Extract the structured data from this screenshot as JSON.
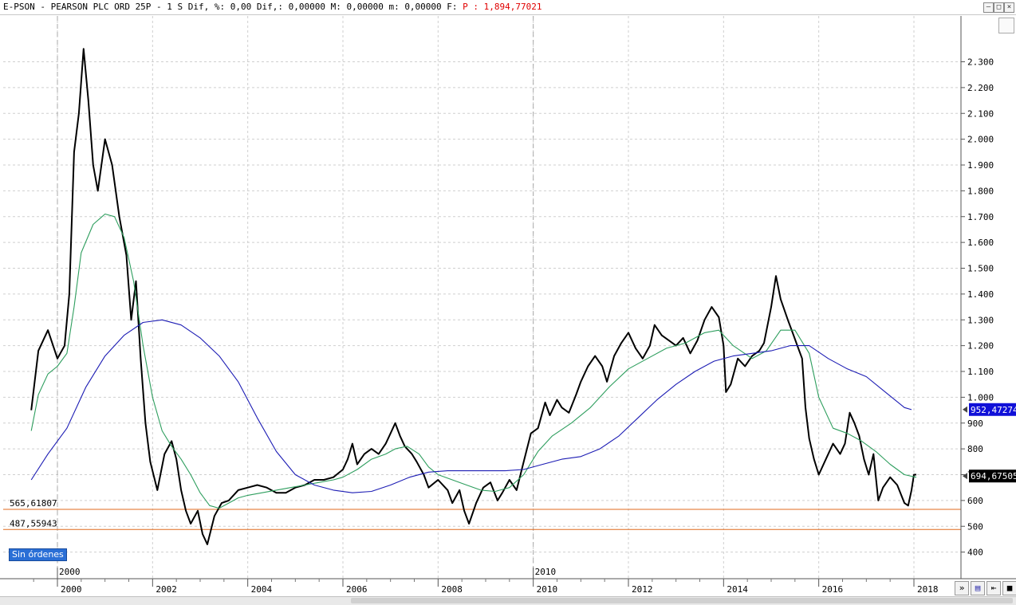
{
  "window": {
    "title": "E-PSON - PEARSON PLC ORD 25P -  1 S Dif, %: 0,00 Dif,: 0,00000 M: 0,00000 m: 0,00000 F:",
    "price_label": "P : 1,894,77021",
    "buttons": {
      "minimize": "–",
      "restore": "□",
      "close": "×"
    }
  },
  "badge": "Sin órdenes",
  "tools": {
    "nav": "»",
    "save": "▤",
    "pin": "⇤",
    "color": "■"
  },
  "chart_data": {
    "type": "line",
    "title": "E-PSON - PEARSON PLC ORD 25P",
    "x_range": [
      1999.45,
      2018.2
    ],
    "ylim": [
      340,
      2420
    ],
    "y_ticks": [
      400,
      500,
      600,
      700,
      800,
      900,
      1000,
      1100,
      1200,
      1300,
      1400,
      1500,
      1600,
      1700,
      1800,
      1900,
      2000,
      2100,
      2200,
      2300
    ],
    "y_tick_labels": [
      "400",
      "500",
      "600",
      "700",
      "800",
      "900",
      "1.000",
      "1.100",
      "1.200",
      "1.300",
      "1.400",
      "1.500",
      "1.600",
      "1.700",
      "1.800",
      "1.900",
      "2.000",
      "2.100",
      "2.200",
      "2.300"
    ],
    "x_ticks": [
      2000,
      2002,
      2004,
      2006,
      2008,
      2010,
      2012,
      2014,
      2016,
      2018
    ],
    "x_tick_labels": [
      "2000",
      "2002",
      "2004",
      "2006",
      "2008",
      "2010",
      "2012",
      "2014",
      "2016",
      "2018"
    ],
    "upper_axis_labels": [
      {
        "x": 2000,
        "label": "2000"
      },
      {
        "x": 2010,
        "label": "2010"
      }
    ],
    "grid": true,
    "series": [
      {
        "name": "price",
        "color": "#000000",
        "points": [
          [
            1999.45,
            950
          ],
          [
            1999.6,
            1180
          ],
          [
            1999.8,
            1260
          ],
          [
            2000.0,
            1150
          ],
          [
            2000.15,
            1200
          ],
          [
            2000.25,
            1400
          ],
          [
            2000.35,
            1950
          ],
          [
            2000.45,
            2100
          ],
          [
            2000.55,
            2350
          ],
          [
            2000.65,
            2150
          ],
          [
            2000.75,
            1900
          ],
          [
            2000.85,
            1800
          ],
          [
            2001.0,
            2000
          ],
          [
            2001.15,
            1900
          ],
          [
            2001.3,
            1700
          ],
          [
            2001.45,
            1550
          ],
          [
            2001.55,
            1300
          ],
          [
            2001.65,
            1450
          ],
          [
            2001.75,
            1150
          ],
          [
            2001.85,
            900
          ],
          [
            2001.95,
            750
          ],
          [
            2002.1,
            640
          ],
          [
            2002.25,
            780
          ],
          [
            2002.4,
            830
          ],
          [
            2002.5,
            760
          ],
          [
            2002.6,
            640
          ],
          [
            2002.7,
            560
          ],
          [
            2002.8,
            510
          ],
          [
            2002.95,
            560
          ],
          [
            2003.05,
            470
          ],
          [
            2003.15,
            430
          ],
          [
            2003.3,
            540
          ],
          [
            2003.45,
            590
          ],
          [
            2003.6,
            600
          ],
          [
            2003.8,
            640
          ],
          [
            2004.0,
            650
          ],
          [
            2004.2,
            660
          ],
          [
            2004.4,
            650
          ],
          [
            2004.6,
            630
          ],
          [
            2004.8,
            630
          ],
          [
            2005.0,
            650
          ],
          [
            2005.2,
            660
          ],
          [
            2005.4,
            680
          ],
          [
            2005.6,
            680
          ],
          [
            2005.8,
            690
          ],
          [
            2006.0,
            720
          ],
          [
            2006.1,
            760
          ],
          [
            2006.2,
            820
          ],
          [
            2006.3,
            740
          ],
          [
            2006.45,
            780
          ],
          [
            2006.6,
            800
          ],
          [
            2006.75,
            780
          ],
          [
            2006.9,
            820
          ],
          [
            2007.0,
            860
          ],
          [
            2007.1,
            900
          ],
          [
            2007.2,
            850
          ],
          [
            2007.3,
            810
          ],
          [
            2007.45,
            780
          ],
          [
            2007.55,
            750
          ],
          [
            2007.7,
            700
          ],
          [
            2007.8,
            650
          ],
          [
            2008.0,
            680
          ],
          [
            2008.2,
            640
          ],
          [
            2008.3,
            590
          ],
          [
            2008.45,
            640
          ],
          [
            2008.55,
            560
          ],
          [
            2008.65,
            510
          ],
          [
            2008.8,
            590
          ],
          [
            2008.95,
            650
          ],
          [
            2009.1,
            670
          ],
          [
            2009.25,
            600
          ],
          [
            2009.35,
            630
          ],
          [
            2009.5,
            680
          ],
          [
            2009.65,
            640
          ],
          [
            2009.8,
            750
          ],
          [
            2009.95,
            860
          ],
          [
            2010.1,
            880
          ],
          [
            2010.25,
            980
          ],
          [
            2010.35,
            930
          ],
          [
            2010.5,
            990
          ],
          [
            2010.6,
            960
          ],
          [
            2010.75,
            940
          ],
          [
            2010.9,
            1010
          ],
          [
            2011.0,
            1060
          ],
          [
            2011.15,
            1120
          ],
          [
            2011.3,
            1160
          ],
          [
            2011.45,
            1120
          ],
          [
            2011.55,
            1060
          ],
          [
            2011.7,
            1160
          ],
          [
            2011.85,
            1210
          ],
          [
            2012.0,
            1250
          ],
          [
            2012.15,
            1190
          ],
          [
            2012.3,
            1150
          ],
          [
            2012.45,
            1200
          ],
          [
            2012.55,
            1280
          ],
          [
            2012.7,
            1240
          ],
          [
            2012.85,
            1220
          ],
          [
            2013.0,
            1200
          ],
          [
            2013.15,
            1230
          ],
          [
            2013.3,
            1170
          ],
          [
            2013.45,
            1220
          ],
          [
            2013.6,
            1300
          ],
          [
            2013.75,
            1350
          ],
          [
            2013.9,
            1310
          ],
          [
            2014.0,
            1200
          ],
          [
            2014.05,
            1020
          ],
          [
            2014.15,
            1050
          ],
          [
            2014.3,
            1150
          ],
          [
            2014.45,
            1120
          ],
          [
            2014.6,
            1160
          ],
          [
            2014.75,
            1180
          ],
          [
            2014.85,
            1210
          ],
          [
            2015.0,
            1350
          ],
          [
            2015.1,
            1470
          ],
          [
            2015.2,
            1380
          ],
          [
            2015.35,
            1300
          ],
          [
            2015.45,
            1250
          ],
          [
            2015.55,
            1200
          ],
          [
            2015.65,
            1150
          ],
          [
            2015.72,
            960
          ],
          [
            2015.8,
            840
          ],
          [
            2015.9,
            760
          ],
          [
            2016.0,
            700
          ],
          [
            2016.15,
            760
          ],
          [
            2016.3,
            820
          ],
          [
            2016.45,
            780
          ],
          [
            2016.55,
            820
          ],
          [
            2016.65,
            940
          ],
          [
            2016.75,
            900
          ],
          [
            2016.85,
            850
          ],
          [
            2016.95,
            760
          ],
          [
            2017.05,
            700
          ],
          [
            2017.15,
            780
          ],
          [
            2017.25,
            600
          ],
          [
            2017.35,
            650
          ],
          [
            2017.5,
            690
          ],
          [
            2017.65,
            660
          ],
          [
            2017.8,
            590
          ],
          [
            2017.88,
            580
          ],
          [
            2017.95,
            640
          ],
          [
            2018.0,
            700
          ],
          [
            2018.05,
            700
          ]
        ]
      },
      {
        "name": "ma_green",
        "color": "#2e9e5e",
        "points": [
          [
            1999.45,
            870
          ],
          [
            1999.6,
            1010
          ],
          [
            1999.8,
            1090
          ],
          [
            2000.0,
            1120
          ],
          [
            2000.2,
            1170
          ],
          [
            2000.35,
            1350
          ],
          [
            2000.5,
            1560
          ],
          [
            2000.75,
            1670
          ],
          [
            2001.0,
            1710
          ],
          [
            2001.2,
            1700
          ],
          [
            2001.4,
            1620
          ],
          [
            2001.6,
            1450
          ],
          [
            2001.8,
            1200
          ],
          [
            2002.0,
            1000
          ],
          [
            2002.2,
            870
          ],
          [
            2002.4,
            810
          ],
          [
            2002.6,
            760
          ],
          [
            2002.8,
            700
          ],
          [
            2003.0,
            630
          ],
          [
            2003.2,
            580
          ],
          [
            2003.4,
            570
          ],
          [
            2003.6,
            590
          ],
          [
            2003.8,
            610
          ],
          [
            2004.0,
            620
          ],
          [
            2004.3,
            630
          ],
          [
            2004.6,
            640
          ],
          [
            2004.9,
            650
          ],
          [
            2005.2,
            660
          ],
          [
            2005.5,
            670
          ],
          [
            2005.8,
            680
          ],
          [
            2006.0,
            690
          ],
          [
            2006.3,
            720
          ],
          [
            2006.6,
            760
          ],
          [
            2006.9,
            780
          ],
          [
            2007.1,
            800
          ],
          [
            2007.35,
            810
          ],
          [
            2007.6,
            780
          ],
          [
            2007.8,
            730
          ],
          [
            2008.0,
            700
          ],
          [
            2008.3,
            680
          ],
          [
            2008.6,
            660
          ],
          [
            2008.9,
            640
          ],
          [
            2009.2,
            635
          ],
          [
            2009.5,
            650
          ],
          [
            2009.8,
            700
          ],
          [
            2010.1,
            790
          ],
          [
            2010.4,
            850
          ],
          [
            2010.8,
            900
          ],
          [
            2011.2,
            960
          ],
          [
            2011.6,
            1040
          ],
          [
            2012.0,
            1110
          ],
          [
            2012.4,
            1150
          ],
          [
            2012.8,
            1190
          ],
          [
            2013.2,
            1210
          ],
          [
            2013.6,
            1250
          ],
          [
            2013.9,
            1260
          ],
          [
            2014.2,
            1200
          ],
          [
            2014.6,
            1150
          ],
          [
            2014.9,
            1180
          ],
          [
            2015.2,
            1260
          ],
          [
            2015.5,
            1260
          ],
          [
            2015.8,
            1170
          ],
          [
            2016.0,
            1000
          ],
          [
            2016.3,
            880
          ],
          [
            2016.6,
            860
          ],
          [
            2016.9,
            830
          ],
          [
            2017.2,
            790
          ],
          [
            2017.5,
            740
          ],
          [
            2017.8,
            700
          ],
          [
            2018.05,
            690
          ]
        ]
      },
      {
        "name": "ma_blue",
        "color": "#1c1cb4",
        "points": [
          [
            1999.45,
            680
          ],
          [
            1999.8,
            780
          ],
          [
            2000.2,
            880
          ],
          [
            2000.6,
            1040
          ],
          [
            2001.0,
            1160
          ],
          [
            2001.4,
            1240
          ],
          [
            2001.8,
            1290
          ],
          [
            2002.2,
            1300
          ],
          [
            2002.6,
            1280
          ],
          [
            2003.0,
            1230
          ],
          [
            2003.4,
            1160
          ],
          [
            2003.8,
            1060
          ],
          [
            2004.2,
            920
          ],
          [
            2004.6,
            790
          ],
          [
            2005.0,
            700
          ],
          [
            2005.4,
            660
          ],
          [
            2005.8,
            640
          ],
          [
            2006.2,
            630
          ],
          [
            2006.6,
            635
          ],
          [
            2007.0,
            660
          ],
          [
            2007.4,
            690
          ],
          [
            2007.8,
            710
          ],
          [
            2008.2,
            715
          ],
          [
            2008.6,
            715
          ],
          [
            2009.0,
            715
          ],
          [
            2009.4,
            715
          ],
          [
            2009.8,
            720
          ],
          [
            2010.2,
            740
          ],
          [
            2010.6,
            760
          ],
          [
            2011.0,
            770
          ],
          [
            2011.4,
            800
          ],
          [
            2011.8,
            850
          ],
          [
            2012.2,
            920
          ],
          [
            2012.6,
            990
          ],
          [
            2013.0,
            1050
          ],
          [
            2013.4,
            1100
          ],
          [
            2013.8,
            1140
          ],
          [
            2014.2,
            1160
          ],
          [
            2014.6,
            1170
          ],
          [
            2015.0,
            1180
          ],
          [
            2015.4,
            1200
          ],
          [
            2015.8,
            1200
          ],
          [
            2016.2,
            1150
          ],
          [
            2016.6,
            1110
          ],
          [
            2017.0,
            1080
          ],
          [
            2017.4,
            1020
          ],
          [
            2017.8,
            960
          ],
          [
            2017.95,
            952
          ]
        ]
      }
    ],
    "horizontal_lines": [
      {
        "value": 565.61807,
        "label": "565,61807",
        "color": "#e06a1e"
      },
      {
        "value": 487.55943,
        "label": "487,55943",
        "color": "#e06a1e"
      }
    ],
    "value_tags": [
      {
        "value": 952.47274,
        "label": "952,47274",
        "bg": "#1010d8",
        "fg": "#ffffff"
      },
      {
        "value": 694.67505,
        "label": "694,67505",
        "bg": "#000000",
        "fg": "#ffffff"
      }
    ]
  }
}
